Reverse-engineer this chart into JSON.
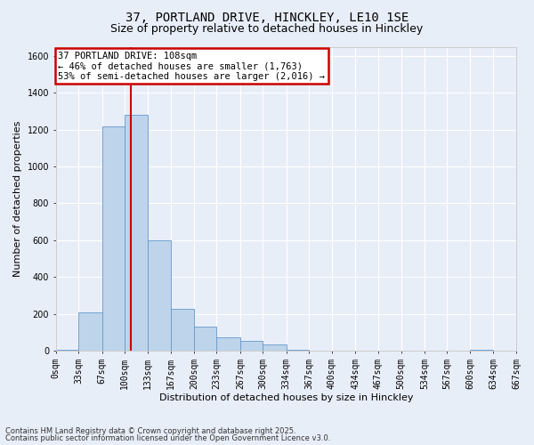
{
  "title_line1": "37, PORTLAND DRIVE, HINCKLEY, LE10 1SE",
  "title_line2": "Size of property relative to detached houses in Hinckley",
  "xlabel": "Distribution of detached houses by size in Hinckley",
  "ylabel": "Number of detached properties",
  "footnote1": "Contains HM Land Registry data © Crown copyright and database right 2025.",
  "footnote2": "Contains public sector information licensed under the Open Government Licence v3.0.",
  "annotation_line1": "37 PORTLAND DRIVE: 108sqm",
  "annotation_line2": "← 46% of detached houses are smaller (1,763)",
  "annotation_line3": "53% of semi-detached houses are larger (2,016) →",
  "property_size": 108,
  "bin_edges": [
    0,
    33,
    67,
    100,
    133,
    167,
    200,
    233,
    267,
    300,
    334,
    367,
    400,
    434,
    467,
    500,
    534,
    567,
    600,
    634,
    667
  ],
  "bar_heights": [
    5,
    210,
    1220,
    1280,
    600,
    225,
    130,
    75,
    55,
    35,
    5,
    0,
    0,
    0,
    0,
    0,
    0,
    0,
    5,
    0
  ],
  "bar_color": "#bdd4ea",
  "bar_edge_color": "#6699cc",
  "redline_color": "#cc0000",
  "background_color": "#e8eef8",
  "fig_background_color": "#e8eef8",
  "annotation_box_edgecolor": "#cc0000",
  "annotation_box_facecolor": "#ffffff",
  "ylim": [
    0,
    1650
  ],
  "yticks": [
    0,
    200,
    400,
    600,
    800,
    1000,
    1200,
    1400,
    1600
  ],
  "grid_color": "#ffffff",
  "tick_fontsize": 7,
  "label_fontsize": 8,
  "title1_fontsize": 10,
  "title2_fontsize": 9,
  "footnote_fontsize": 6,
  "annotation_fontsize": 7.5
}
